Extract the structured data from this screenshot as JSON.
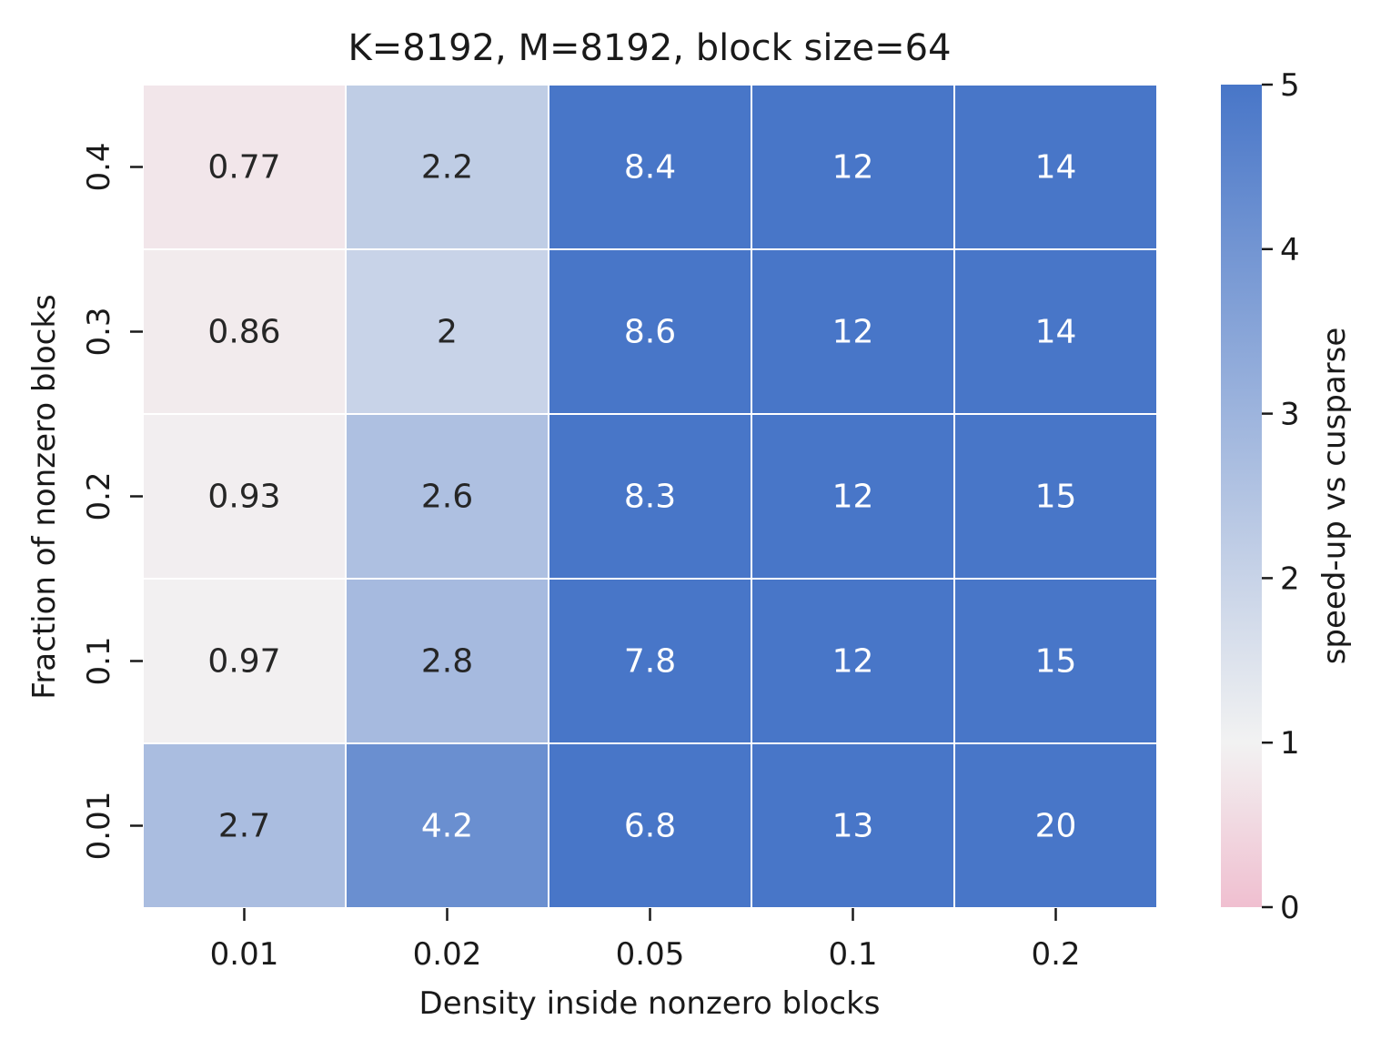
{
  "chart_data": {
    "type": "heatmap",
    "title": "K=8192, M=8192, block size=64",
    "xlabel": "Density inside nonzero blocks",
    "ylabel": "Fraction of nonzero blocks",
    "x_categories": [
      "0.01",
      "0.02",
      "0.05",
      "0.1",
      "0.2"
    ],
    "y_categories": [
      "0.4",
      "0.3",
      "0.2",
      "0.1",
      "0.01"
    ],
    "values": [
      [
        0.77,
        2.2,
        8.4,
        12,
        14
      ],
      [
        0.86,
        2,
        8.6,
        12,
        14
      ],
      [
        0.93,
        2.6,
        8.3,
        12,
        15
      ],
      [
        0.97,
        2.8,
        7.8,
        12,
        15
      ],
      [
        2.7,
        4.2,
        6.8,
        13,
        20
      ]
    ],
    "cell_labels": [
      [
        "0.77",
        "2.2",
        "8.4",
        "12",
        "14"
      ],
      [
        "0.86",
        "2",
        "8.6",
        "12",
        "14"
      ],
      [
        "0.93",
        "2.6",
        "8.3",
        "12",
        "15"
      ],
      [
        "0.97",
        "2.8",
        "7.8",
        "12",
        "15"
      ],
      [
        "2.7",
        "4.2",
        "6.8",
        "13",
        "20"
      ]
    ],
    "colorbar": {
      "label": "speed-up vs cusparse",
      "range": [
        0,
        5
      ],
      "center": 1,
      "ticks": [
        "0",
        "1",
        "2",
        "3",
        "4",
        "5"
      ],
      "low_color": "#f0bfd0",
      "mid_color": "#f2f2f2",
      "high_color": "#4876c8"
    },
    "grid": false,
    "legend": "colorbar-right"
  }
}
